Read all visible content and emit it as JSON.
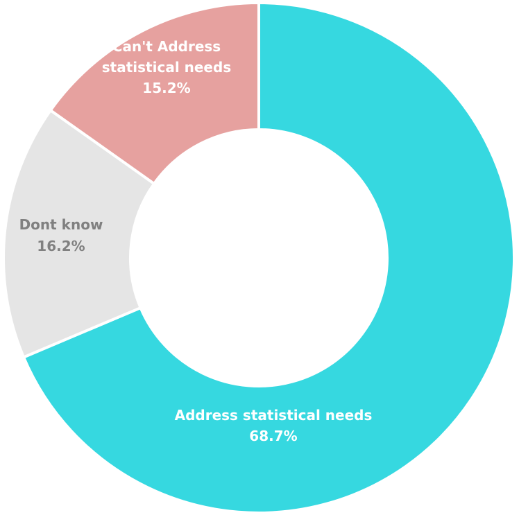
{
  "chart_data": {
    "type": "pie",
    "variant": "donut",
    "slices": [
      {
        "label": "Address statistical needs",
        "value_label": "68.7%",
        "value": 68.7,
        "color": "#36D8E0",
        "label_color": "#FFFFFF"
      },
      {
        "label": "Dont know",
        "value_label": "16.2%",
        "value": 16.2,
        "color": "#E5E5E5",
        "label_color": "#808080"
      },
      {
        "label": "Can't Address statistical needs",
        "value_label": "15.2%",
        "value": 15.2,
        "color": "#E6A19F",
        "label_color": "#FFFFFF"
      }
    ],
    "start_angle": "12 o'clock",
    "direction": "clockwise",
    "legend": "none"
  }
}
